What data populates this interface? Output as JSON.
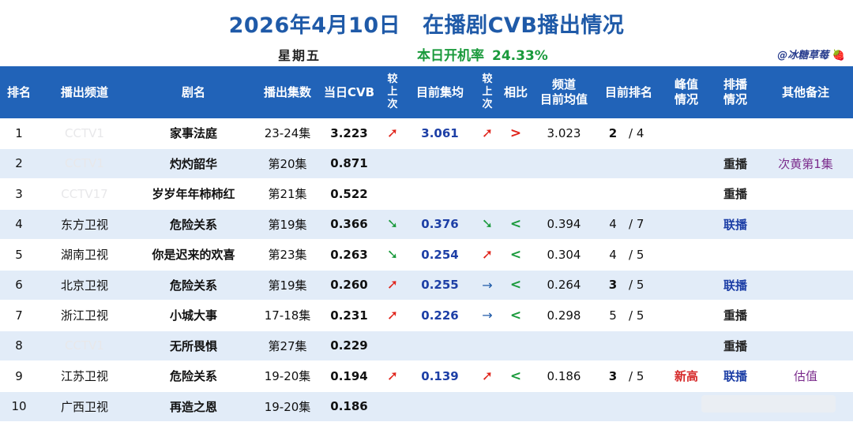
{
  "title": {
    "date": "2026年4月10日",
    "main": "在播剧CVB播出情况"
  },
  "weekday": "星期五",
  "open_rate": {
    "label": "本日开机率",
    "value": "24.33%"
  },
  "author": {
    "name": "@冰糖草莓",
    "icon": "strawberry-icon"
  },
  "colors": {
    "header_bg": "#2163b8",
    "title": "#1f5aa8",
    "up": "#e0241b",
    "down": "#1a9a3c",
    "stripe": "#e2ecf8"
  },
  "headers": {
    "rank": "排名",
    "channel": "播出频道",
    "drama": "剧名",
    "episodes": "播出集数",
    "cvb": "当日CVB",
    "cmp_prev_1": "较上次",
    "avg": "目前集均",
    "cmp_prev_2": "较上次",
    "compare": "相比",
    "channel_avg_1": "频道",
    "channel_avg_2": "目前均值",
    "current_rank": "目前排名",
    "peak_1": "峰值",
    "peak_2": "情况",
    "schedule_1": "排播",
    "schedule_2": "情况",
    "notes": "其他备注"
  },
  "rows": [
    {
      "rank": "1",
      "channel": "CCTV1",
      "channel_faded": true,
      "drama": "家事法庭",
      "episodes": "23-24集",
      "cvb": "3.223",
      "cvb_trend": "up",
      "avg": "3.061",
      "avg_trend": "up",
      "compare": ">",
      "channel_avg": "3.023",
      "cur_rank": "2",
      "cur_total": "/ 4",
      "cur_rank_bold": true,
      "peak": "",
      "schedule": "",
      "note": ""
    },
    {
      "rank": "2",
      "channel": "CCTV1",
      "channel_faded": true,
      "drama": "灼灼韶华",
      "episodes": "第20集",
      "cvb": "0.871",
      "cvb_trend": "",
      "avg": "",
      "avg_trend": "",
      "compare": "",
      "channel_avg": "",
      "cur_rank": "",
      "cur_total": "",
      "cur_rank_bold": false,
      "peak": "",
      "schedule": "重播",
      "note": "次黄第1集"
    },
    {
      "rank": "3",
      "channel": "CCTV17",
      "channel_faded": true,
      "drama": "岁岁年年柿柿红",
      "episodes": "第21集",
      "cvb": "0.522",
      "cvb_trend": "",
      "avg": "",
      "avg_trend": "",
      "compare": "",
      "channel_avg": "",
      "cur_rank": "",
      "cur_total": "",
      "cur_rank_bold": false,
      "peak": "",
      "schedule": "重播",
      "note": ""
    },
    {
      "rank": "4",
      "channel": "东方卫视",
      "channel_faded": false,
      "drama": "危险关系",
      "episodes": "第19集",
      "cvb": "0.366",
      "cvb_trend": "down",
      "avg": "0.376",
      "avg_trend": "down",
      "compare": "<",
      "channel_avg": "0.394",
      "cur_rank": "4",
      "cur_total": "/ 7",
      "cur_rank_bold": false,
      "peak": "",
      "schedule": "联播",
      "note": ""
    },
    {
      "rank": "5",
      "channel": "湖南卫视",
      "channel_faded": false,
      "drama": "你是迟来的欢喜",
      "episodes": "第23集",
      "cvb": "0.263",
      "cvb_trend": "down",
      "avg": "0.254",
      "avg_trend": "up",
      "compare": "<",
      "channel_avg": "0.304",
      "cur_rank": "4",
      "cur_total": "/ 5",
      "cur_rank_bold": false,
      "peak": "",
      "schedule": "",
      "note": ""
    },
    {
      "rank": "6",
      "channel": "北京卫视",
      "channel_faded": false,
      "drama": "危险关系",
      "episodes": "第19集",
      "cvb": "0.260",
      "cvb_trend": "up",
      "avg": "0.255",
      "avg_trend": "flat",
      "compare": "<",
      "channel_avg": "0.264",
      "cur_rank": "3",
      "cur_total": "/ 5",
      "cur_rank_bold": true,
      "peak": "",
      "schedule": "联播",
      "note": ""
    },
    {
      "rank": "7",
      "channel": "浙江卫视",
      "channel_faded": false,
      "drama": "小城大事",
      "episodes": "17-18集",
      "cvb": "0.231",
      "cvb_trend": "up",
      "avg": "0.226",
      "avg_trend": "flat",
      "compare": "<",
      "channel_avg": "0.298",
      "cur_rank": "5",
      "cur_total": "/ 5",
      "cur_rank_bold": false,
      "peak": "",
      "schedule": "重播",
      "note": ""
    },
    {
      "rank": "8",
      "channel": "CCTV1",
      "channel_faded": true,
      "drama": "无所畏惧",
      "episodes": "第27集",
      "cvb": "0.229",
      "cvb_trend": "",
      "avg": "",
      "avg_trend": "",
      "compare": "",
      "channel_avg": "",
      "cur_rank": "",
      "cur_total": "",
      "cur_rank_bold": false,
      "peak": "",
      "schedule": "重播",
      "note": ""
    },
    {
      "rank": "9",
      "channel": "江苏卫视",
      "channel_faded": false,
      "drama": "危险关系",
      "episodes": "19-20集",
      "cvb": "0.194",
      "cvb_trend": "up",
      "avg": "0.139",
      "avg_trend": "up",
      "compare": "<",
      "channel_avg": "0.186",
      "cur_rank": "3",
      "cur_total": "/ 5",
      "cur_rank_bold": true,
      "peak": "新高",
      "schedule": "联播",
      "note": "估值"
    },
    {
      "rank": "10",
      "channel": "广西卫视",
      "channel_faded": false,
      "drama": "再造之恩",
      "episodes": "19-20集",
      "cvb": "0.186",
      "cvb_trend": "",
      "avg": "",
      "avg_trend": "",
      "compare": "",
      "channel_avg": "",
      "cur_rank": "",
      "cur_total": "",
      "cur_rank_bold": false,
      "peak": "",
      "schedule": "",
      "note": ""
    }
  ]
}
